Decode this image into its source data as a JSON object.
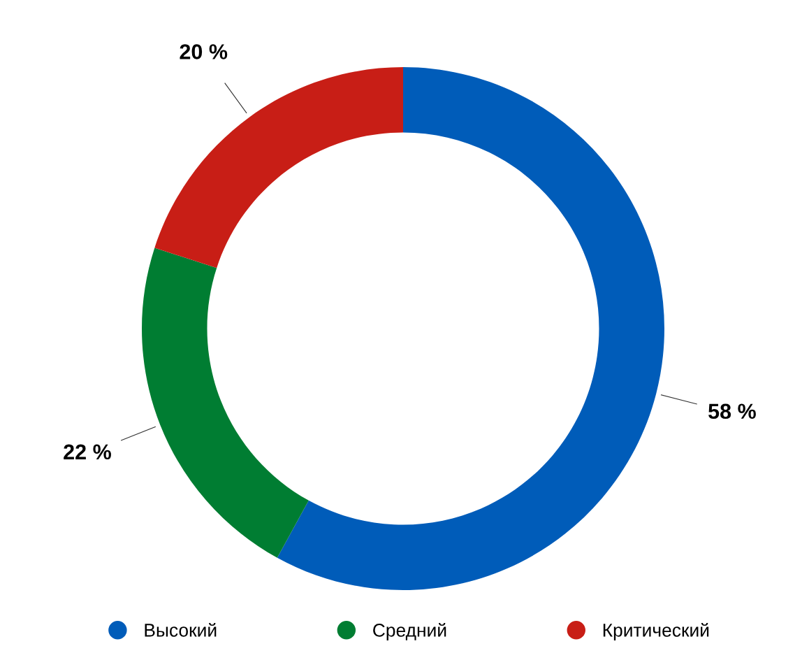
{
  "chart_data": {
    "type": "donut",
    "categories": [
      "Высокий",
      "Средний",
      "Критический"
    ],
    "values": [
      58,
      22,
      20
    ],
    "colors": [
      "#005cb9",
      "#007d32",
      "#c81e16"
    ],
    "value_labels": [
      "58 %",
      "22 %",
      "20 %"
    ],
    "legend": "bottom"
  }
}
